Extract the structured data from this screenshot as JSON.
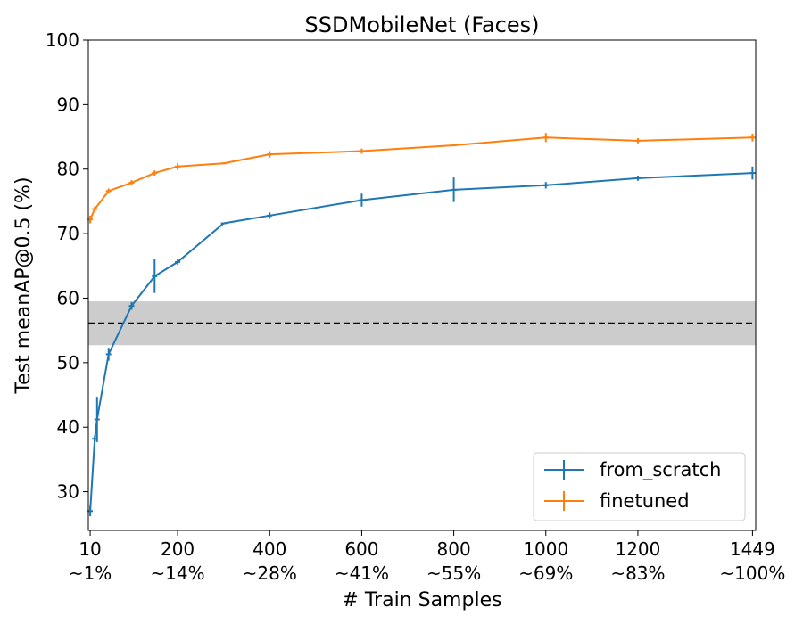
{
  "chart_data": {
    "type": "line",
    "title": "SSDMobileNet (Faces)",
    "xlabel": "# Train Samples",
    "ylabel": "Test meanAP@0.5 (%)",
    "xlim": [
      6,
      1456
    ],
    "ylim": [
      24,
      100
    ],
    "xticks": [
      {
        "value": 10,
        "label": "10",
        "sublabel": "~1%"
      },
      {
        "value": 200,
        "label": "200",
        "sublabel": "~14%"
      },
      {
        "value": 400,
        "label": "400",
        "sublabel": "~28%"
      },
      {
        "value": 600,
        "label": "600",
        "sublabel": "~41%"
      },
      {
        "value": 800,
        "label": "800",
        "sublabel": "~55%"
      },
      {
        "value": 1000,
        "label": "1000",
        "sublabel": "~69%"
      },
      {
        "value": 1200,
        "label": "1200",
        "sublabel": "~83%"
      },
      {
        "value": 1449,
        "label": "1449",
        "sublabel": "~100%"
      }
    ],
    "yticks": [
      30,
      40,
      50,
      60,
      70,
      80,
      90,
      100
    ],
    "grid": false,
    "legend_position": "lower-right",
    "baseline": {
      "value": 56.1,
      "band_low": 52.7,
      "band_high": 59.5,
      "color": "#cccccc",
      "line_color": "#000000"
    },
    "series": [
      {
        "name": "from_scratch",
        "color": "#1f77b4",
        "points": [
          {
            "x": 10,
            "y": 27.0,
            "err": 0.8
          },
          {
            "x": 20,
            "y": 38.2,
            "err": 0.5
          },
          {
            "x": 25,
            "y": 41.2,
            "err": 3.5
          },
          {
            "x": 50,
            "y": 51.3,
            "err": 1.0
          },
          {
            "x": 100,
            "y": 58.8,
            "err": 0.6
          },
          {
            "x": 150,
            "y": 63.4,
            "err": 2.6
          },
          {
            "x": 200,
            "y": 65.6,
            "err": 0.4
          },
          {
            "x": 300,
            "y": 71.6,
            "err": 0.0
          },
          {
            "x": 400,
            "y": 72.8,
            "err": 0.5
          },
          {
            "x": 600,
            "y": 75.2,
            "err": 1.0
          },
          {
            "x": 800,
            "y": 76.8,
            "err": 1.9
          },
          {
            "x": 1000,
            "y": 77.5,
            "err": 0.5
          },
          {
            "x": 1200,
            "y": 78.6,
            "err": 0.4
          },
          {
            "x": 1449,
            "y": 79.4,
            "err": 1.0
          }
        ]
      },
      {
        "name": "finetuned",
        "color": "#ff7f0e",
        "points": [
          {
            "x": 10,
            "y": 72.2,
            "err": 0.6
          },
          {
            "x": 20,
            "y": 73.8,
            "err": 0.4
          },
          {
            "x": 50,
            "y": 76.6,
            "err": 0.4
          },
          {
            "x": 100,
            "y": 77.9,
            "err": 0.4
          },
          {
            "x": 150,
            "y": 79.4,
            "err": 0.4
          },
          {
            "x": 200,
            "y": 80.4,
            "err": 0.5
          },
          {
            "x": 300,
            "y": 80.9,
            "err": 0.0
          },
          {
            "x": 400,
            "y": 82.3,
            "err": 0.5
          },
          {
            "x": 600,
            "y": 82.8,
            "err": 0.4
          },
          {
            "x": 800,
            "y": 83.7,
            "err": 0.0
          },
          {
            "x": 1000,
            "y": 84.9,
            "err": 0.7
          },
          {
            "x": 1200,
            "y": 84.4,
            "err": 0.4
          },
          {
            "x": 1449,
            "y": 84.9,
            "err": 0.6
          }
        ]
      }
    ]
  }
}
